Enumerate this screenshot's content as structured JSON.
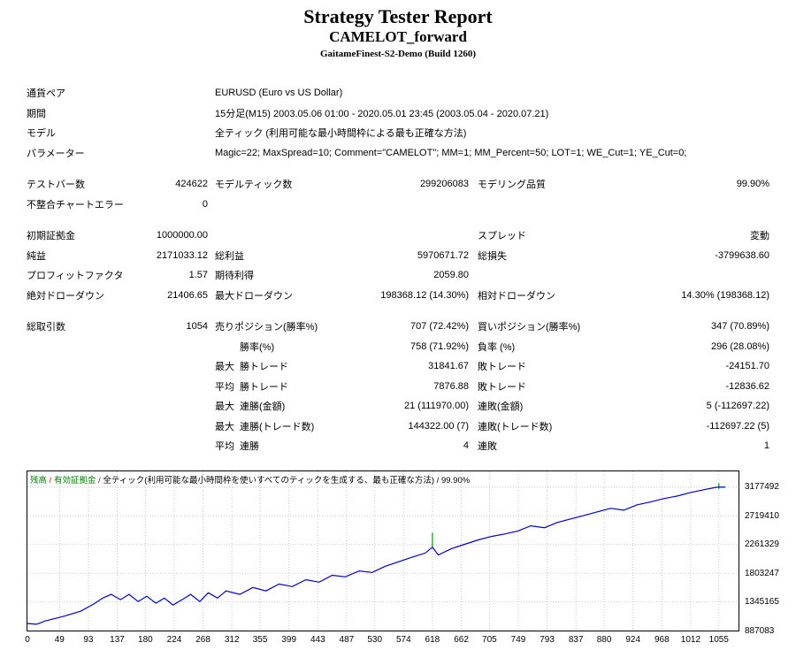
{
  "header": {
    "title": "Strategy Tester Report",
    "ea_name": "CAMELOT_forward",
    "server": "GaitameFinest-S2-Demo (Build 1260)"
  },
  "settings": [
    {
      "label": "通貨ペア",
      "value": "EURUSD (Euro vs US Dollar)"
    },
    {
      "label": "期間",
      "value": "15分足(M15) 2003.05.06 01:00 - 2020.05.01 23:45 (2003.05.04 - 2020.07.21)"
    },
    {
      "label": "モデル",
      "value": "全ティック (利用可能な最小時間枠による最も正確な方法)"
    },
    {
      "label": "パラメーター",
      "value": "Magic=22; MaxSpread=10; Comment=\"CAMELOT\"; MM=1; MM_Percent=50; LOT=1; WE_Cut=1; YE_Cut=0;"
    }
  ],
  "quality": [
    {
      "c1": "テストバー数",
      "v1": "424622",
      "c2": "モデルティック数",
      "v2": "299206083",
      "c3": "モデリング品質",
      "v3": "99.90%"
    },
    {
      "c1": "不整合チャートエラー",
      "v1": "0",
      "c2": "",
      "v2": "",
      "c3": "",
      "v3": ""
    }
  ],
  "results": [
    {
      "c1": "初期証拠金",
      "v1": "1000000.00",
      "c2": "",
      "v2": "",
      "c3": "スプレッド",
      "v3": "変動"
    },
    {
      "c1": "純益",
      "v1": "2171033.12",
      "c2": "総利益",
      "v2": "5970671.72",
      "c3": "総損失",
      "v3": "-3799638.60"
    },
    {
      "c1": "プロフィットファクタ",
      "v1": "1.57",
      "c2": "期待利得",
      "v2": "2059.80",
      "c3": "",
      "v3": ""
    },
    {
      "c1": "絶対ドローダウン",
      "v1": "21406.65",
      "c2": "最大ドローダウン",
      "v2": "198368.12 (14.30%)",
      "c3": "相対ドローダウン",
      "v3": "14.30% (198368.12)"
    }
  ],
  "trades": [
    {
      "c1": "総取引数",
      "v1": "1054",
      "c2": "売りポジション(勝率%)",
      "v2": "707 (72.42%)",
      "c3": "買いポジション(勝率%)",
      "v3": "347 (70.89%)"
    },
    {
      "c1": "",
      "v1": "",
      "prefix": "",
      "c2": "勝率(%)",
      "v2": "758 (71.92%)",
      "c3": "負率 (%)",
      "v3": "296 (28.08%)"
    },
    {
      "c1": "",
      "v1": "",
      "prefix": "最大",
      "c2": "勝トレード",
      "v2": "31841.67",
      "c3": "敗トレード",
      "v3": "-24151.70"
    },
    {
      "c1": "",
      "v1": "",
      "prefix": "平均",
      "c2": "勝トレード",
      "v2": "7876.88",
      "c3": "敗トレード",
      "v3": "-12836.62"
    },
    {
      "c1": "",
      "v1": "",
      "prefix": "最大",
      "c2": "連勝(金額)",
      "v2": "21 (111970.00)",
      "c3": "連敗(金額)",
      "v3": "5 (-112697.22)"
    },
    {
      "c1": "",
      "v1": "",
      "prefix": "最大",
      "c2": "連勝(トレード数)",
      "v2": "144322.00 (7)",
      "c3": "連敗(トレード数)",
      "v3": "-112697.22 (5)"
    },
    {
      "c1": "",
      "v1": "",
      "prefix": "平均",
      "c2": "連勝",
      "v2": "4",
      "c3": "連敗",
      "v3": "1"
    }
  ],
  "chart_data": {
    "type": "line",
    "legend_parts": [
      {
        "text": "残高",
        "color": "#008000"
      },
      {
        "text": " / ",
        "color": "#d00000"
      },
      {
        "text": "有効証拠金",
        "color": "#008000"
      },
      {
        "text": " / ",
        "color": "#d00000"
      },
      {
        "text": "全ティック(利用可能な最小時間枠を使いすべてのティックを生成する、最も正確な方法)",
        "color": "#000000"
      },
      {
        "text": " / 99.90%",
        "color": "#000000"
      }
    ],
    "y_ticks": [
      3177492,
      2719410,
      2261329,
      1803247,
      1345165,
      887083
    ],
    "x_ticks": [
      0,
      49,
      93,
      137,
      180,
      224,
      268,
      312,
      355,
      399,
      443,
      487,
      530,
      574,
      618,
      662,
      705,
      749,
      793,
      837,
      880,
      924,
      968,
      1012,
      1055
    ],
    "x_max": 1085,
    "y_min": 887083,
    "y_max": 3430500,
    "balance_color": "#0000cc",
    "equity_color": "#009900",
    "grid_color": "#c8c8c8",
    "balance": [
      [
        0,
        1000000
      ],
      [
        14,
        988000
      ],
      [
        27,
        1040000
      ],
      [
        54,
        1110000
      ],
      [
        81,
        1195000
      ],
      [
        101,
        1310000
      ],
      [
        115,
        1405000
      ],
      [
        128,
        1465000
      ],
      [
        142,
        1380000
      ],
      [
        155,
        1465000
      ],
      [
        169,
        1350000
      ],
      [
        182,
        1435000
      ],
      [
        196,
        1325000
      ],
      [
        209,
        1405000
      ],
      [
        222,
        1295000
      ],
      [
        236,
        1380000
      ],
      [
        249,
        1465000
      ],
      [
        263,
        1350000
      ],
      [
        276,
        1490000
      ],
      [
        290,
        1405000
      ],
      [
        303,
        1520000
      ],
      [
        324,
        1465000
      ],
      [
        344,
        1575000
      ],
      [
        364,
        1520000
      ],
      [
        384,
        1630000
      ],
      [
        404,
        1590000
      ],
      [
        425,
        1700000
      ],
      [
        445,
        1660000
      ],
      [
        465,
        1770000
      ],
      [
        485,
        1745000
      ],
      [
        506,
        1840000
      ],
      [
        526,
        1815000
      ],
      [
        546,
        1915000
      ],
      [
        566,
        1985000
      ],
      [
        586,
        2055000
      ],
      [
        607,
        2125000
      ],
      [
        618,
        2220000
      ],
      [
        627,
        2095000
      ],
      [
        647,
        2195000
      ],
      [
        667,
        2265000
      ],
      [
        688,
        2335000
      ],
      [
        708,
        2390000
      ],
      [
        728,
        2430000
      ],
      [
        748,
        2475000
      ],
      [
        768,
        2560000
      ],
      [
        789,
        2530000
      ],
      [
        809,
        2615000
      ],
      [
        829,
        2670000
      ],
      [
        849,
        2725000
      ],
      [
        870,
        2785000
      ],
      [
        890,
        2840000
      ],
      [
        910,
        2810000
      ],
      [
        930,
        2895000
      ],
      [
        950,
        2940000
      ],
      [
        971,
        2995000
      ],
      [
        991,
        3035000
      ],
      [
        1011,
        3090000
      ],
      [
        1031,
        3135000
      ],
      [
        1052,
        3177492
      ],
      [
        1065,
        3177492
      ]
    ],
    "equity_spikes": [
      [
        618,
        2220000,
        2450000
      ],
      [
        1055,
        3150000,
        3240000
      ]
    ]
  }
}
